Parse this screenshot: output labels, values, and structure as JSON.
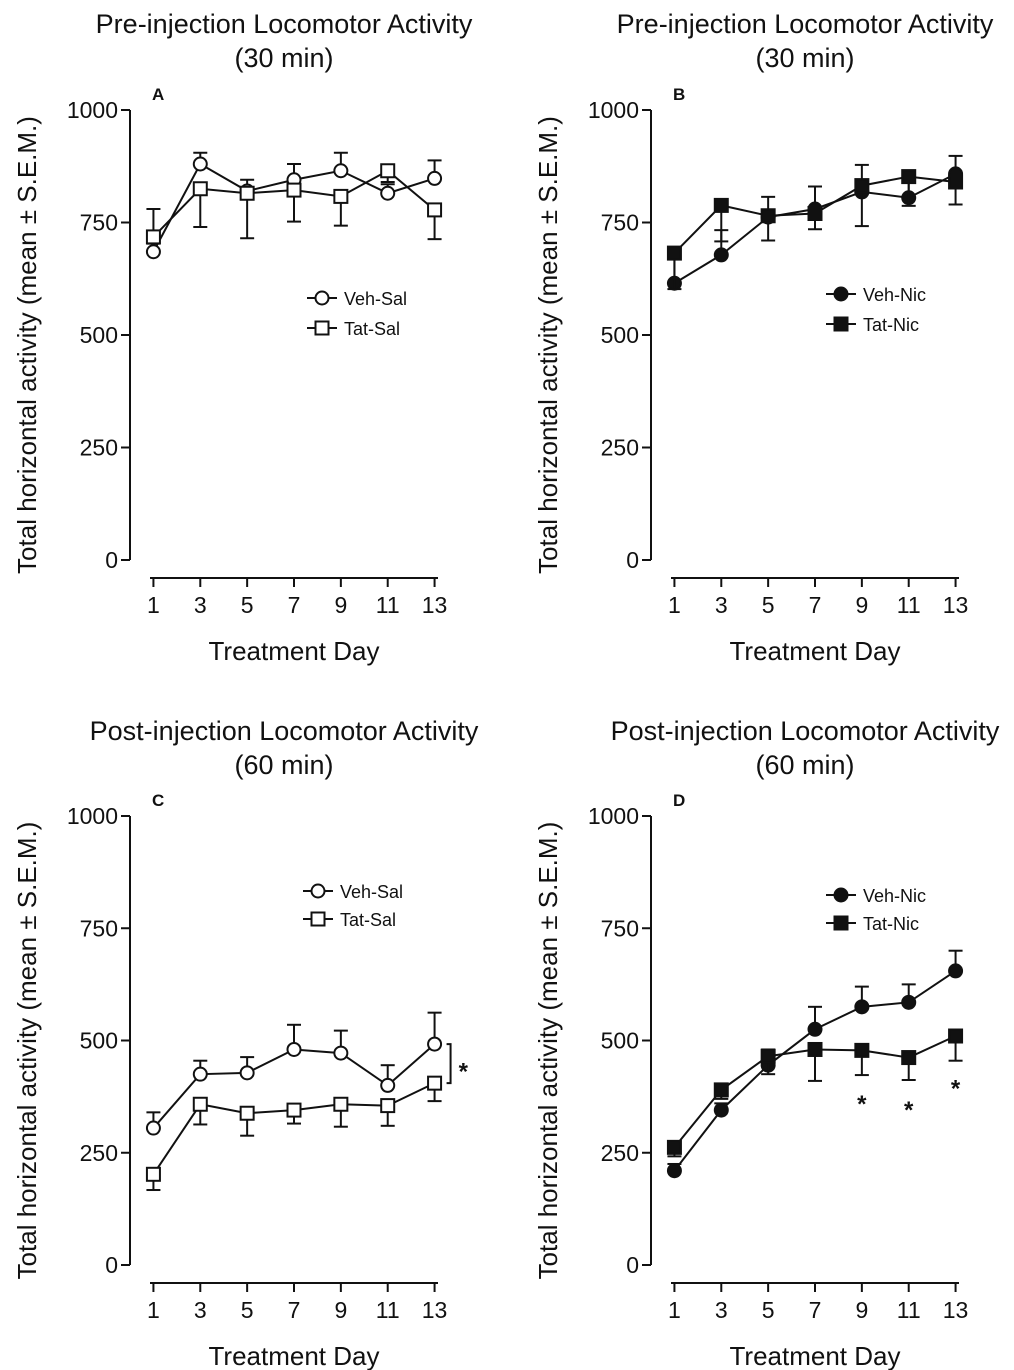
{
  "chart_data": [
    {
      "id": "A",
      "type": "line",
      "panel_label": "A",
      "title_lines": [
        "Pre-injection Locomotor Activity",
        "(30 min)"
      ],
      "xlabel": "Treatment Day",
      "ylabel": "Total horizontal activity (mean ± S.E.M.)",
      "x": [
        1,
        3,
        5,
        7,
        9,
        11,
        13
      ],
      "xticks": [
        "1",
        "3",
        "5",
        "7",
        "9",
        "11",
        "13"
      ],
      "yticks": [
        "0",
        "250",
        "500",
        "750",
        "1000"
      ],
      "xlim": [
        0,
        14
      ],
      "ylim": [
        0,
        1000
      ],
      "legend_position": "center-right",
      "series": [
        {
          "name": "Veh-Sal",
          "marker": "circle",
          "filled": false,
          "values": [
            685,
            880,
            820,
            845,
            865,
            815,
            848
          ],
          "err": [
            95,
            25,
            25,
            35,
            40,
            20,
            40
          ]
        },
        {
          "name": "Tat-Sal",
          "marker": "square",
          "filled": false,
          "values": [
            718,
            825,
            815,
            822,
            808,
            865,
            778
          ],
          "err": [
            15,
            85,
            100,
            70,
            65,
            25,
            65
          ]
        }
      ],
      "annotations": []
    },
    {
      "id": "B",
      "type": "line",
      "panel_label": "B",
      "title_lines": [
        "Pre-injection Locomotor Activity",
        "(30 min)"
      ],
      "xlabel": "Treatment Day",
      "ylabel": "Total  horizontal activity (mean ± S.E.M.)",
      "x": [
        1,
        3,
        5,
        7,
        9,
        11,
        13
      ],
      "xticks": [
        "1",
        "3",
        "5",
        "7",
        "9",
        "11",
        "13"
      ],
      "yticks": [
        "0",
        "250",
        "500",
        "750",
        "1000"
      ],
      "xlim": [
        0,
        14
      ],
      "ylim": [
        0,
        1000
      ],
      "legend_position": "center-right",
      "series": [
        {
          "name": "Veh-Nic",
          "marker": "circle",
          "filled": true,
          "values": [
            615,
            678,
            762,
            780,
            818,
            805,
            858
          ],
          "err": [
            65,
            55,
            45,
            50,
            60,
            40,
            40
          ]
        },
        {
          "name": "Tat-Nic",
          "marker": "square",
          "filled": true,
          "values": [
            682,
            788,
            765,
            770,
            832,
            852,
            840
          ],
          "err": [
            80,
            80,
            55,
            35,
            90,
            65,
            50
          ]
        }
      ],
      "annotations": []
    },
    {
      "id": "C",
      "type": "line",
      "panel_label": "C",
      "title_lines": [
        "Post-injection Locomotor Activity",
        "(60 min)"
      ],
      "xlabel": "Treatment Day",
      "ylabel": "Total  horizontal activity (mean ± S.E.M.)",
      "x": [
        1,
        3,
        5,
        7,
        9,
        11,
        13
      ],
      "xticks": [
        "1",
        "3",
        "5",
        "7",
        "9",
        "11",
        "13"
      ],
      "yticks": [
        "0",
        "250",
        "500",
        "750",
        "1000"
      ],
      "xlim": [
        0,
        14
      ],
      "ylim": [
        0,
        1000
      ],
      "legend_position": "top-right",
      "series": [
        {
          "name": "Veh-Sal",
          "marker": "circle",
          "filled": false,
          "values": [
            305,
            425,
            428,
            480,
            472,
            400,
            492
          ],
          "err": [
            35,
            30,
            35,
            55,
            50,
            45,
            70
          ]
        },
        {
          "name": "Tat-Sal",
          "marker": "square",
          "filled": false,
          "values": [
            202,
            358,
            338,
            345,
            358,
            355,
            405
          ],
          "err": [
            35,
            45,
            50,
            30,
            50,
            45,
            40
          ]
        }
      ],
      "annotations": [
        {
          "text": "*",
          "type": "bracket",
          "x": 13,
          "y_from": 405,
          "y_to": 492
        }
      ]
    },
    {
      "id": "D",
      "type": "line",
      "panel_label": "D",
      "title_lines": [
        "Post-injection Locomotor Activity",
        "(60 min)"
      ],
      "xlabel": "Treatment Day",
      "ylabel": "Total  horizontal activity (mean ± S.E.M.)",
      "x": [
        1,
        3,
        5,
        7,
        9,
        11,
        13
      ],
      "xticks": [
        "1",
        "3",
        "5",
        "7",
        "9",
        "11",
        "13"
      ],
      "yticks": [
        "0",
        "250",
        "500",
        "750",
        "1000"
      ],
      "xlim": [
        0,
        14
      ],
      "ylim": [
        0,
        1000
      ],
      "legend_position": "top-right",
      "series": [
        {
          "name": "Veh-Nic",
          "marker": "circle",
          "filled": true,
          "values": [
            210,
            345,
            445,
            525,
            575,
            585,
            655
          ],
          "err": [
            15,
            15,
            35,
            50,
            45,
            40,
            45
          ]
        },
        {
          "name": "Tat-Nic",
          "marker": "square",
          "filled": true,
          "values": [
            262,
            390,
            465,
            480,
            478,
            462,
            510
          ],
          "err": [
            20,
            20,
            40,
            70,
            55,
            50,
            55
          ]
        }
      ],
      "annotations": [
        {
          "text": "*",
          "type": "star",
          "x": 9,
          "y": 385
        },
        {
          "text": "*",
          "type": "star",
          "x": 11,
          "y": 372
        },
        {
          "text": "*",
          "type": "star",
          "x": 13,
          "y": 420
        }
      ]
    }
  ]
}
